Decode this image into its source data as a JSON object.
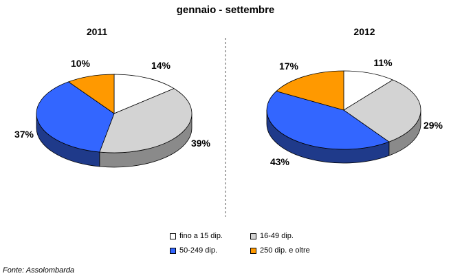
{
  "title": "gennaio - settembre",
  "source": "Fonte: Assolombarda",
  "colors": {
    "fino a 15 dip.": "#ffffff",
    "16-49 dip.": "#d3d3d3",
    "50-249 dip.": "#3366ff",
    "250 dip. e oltre": "#ff9900"
  },
  "legend": [
    "fino a 15 dip.",
    "16-49 dip.",
    "50-249 dip.",
    "250 dip. e oltre"
  ],
  "chart_data": [
    {
      "type": "pie",
      "title": "2011",
      "categories": [
        "fino a 15 dip.",
        "16-49 dip.",
        "50-249 dip.",
        "250 dip. e oltre"
      ],
      "values": [
        14,
        39,
        37,
        10
      ],
      "labels": [
        "14%",
        "39%",
        "37%",
        "10%"
      ]
    },
    {
      "type": "pie",
      "title": "2012",
      "categories": [
        "fino a 15 dip.",
        "16-49 dip.",
        "50-249 dip.",
        "250 dip. e oltre"
      ],
      "values": [
        11,
        29,
        43,
        17
      ],
      "labels": [
        "11%",
        "29%",
        "43%",
        "17%"
      ]
    }
  ]
}
